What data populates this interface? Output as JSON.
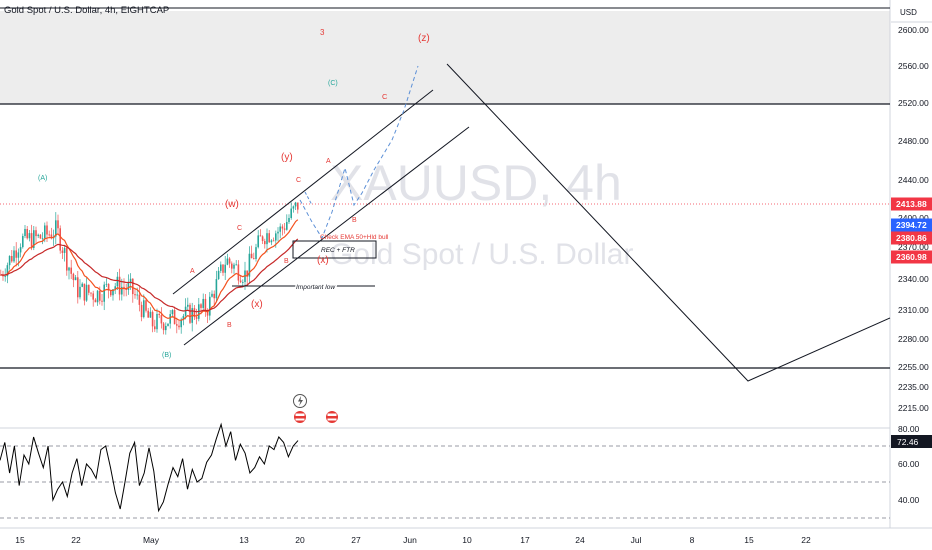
{
  "header": {
    "symbol_title": "Gold Spot / U.S. Dollar, 4h, EIGHTCAP",
    "currency": "USD"
  },
  "watermark": {
    "ticker": "XAUUSD, 4h",
    "name": "Gold Spot / U.S. Dollar"
  },
  "colors": {
    "up": "#26a69a",
    "down": "#ef5350",
    "wave_red": "#e53935",
    "wave_teal": "#26a69a",
    "projection": "#5b8fd6",
    "ema_fast": "#f4511e",
    "ema_slow": "#c62828",
    "rsi": "#000000",
    "price_tag_red": "#f23645",
    "price_tag_blue": "#2962ff",
    "rsi_tag": "#131722"
  },
  "chart_data": {
    "type": "line",
    "title": "Gold Spot / U.S. Dollar, 4h, EIGHTCAP",
    "y_axis_ticks": [
      "2600.00",
      "2560.00",
      "2520.00",
      "2480.00",
      "2440.00",
      "2400.00",
      "2370.00",
      "2340.00",
      "2310.00",
      "2280.00",
      "2255.00",
      "2235.00",
      "2215.00"
    ],
    "x_axis_ticks": [
      "15",
      "22",
      "May",
      "13",
      "20",
      "27",
      "Jun",
      "10",
      "17",
      "24",
      "Jul",
      "8",
      "15",
      "22"
    ],
    "price_series": {
      "name": "XAUUSD close (approx.)",
      "x": [
        "Apr 12",
        "Apr 15",
        "Apr 17",
        "Apr 19",
        "Apr 22",
        "Apr 24",
        "Apr 26",
        "Apr 29",
        "May 1",
        "May 3",
        "May 6",
        "May 8",
        "May 10",
        "May 13",
        "May 15",
        "May 17",
        "May 20"
      ],
      "y": [
        2345,
        2380,
        2382,
        2390,
        2330,
        2325,
        2335,
        2330,
        2295,
        2300,
        2305,
        2312,
        2360,
        2345,
        2385,
        2390,
        2420
      ]
    },
    "price_labels": [
      {
        "value": "2413.88",
        "role": "last price",
        "color": "#f23645"
      },
      {
        "value": "2394.72",
        "role": "ema",
        "color": "#2962ff"
      },
      {
        "value": "2380.86",
        "role": "ema",
        "color": "#f23645"
      },
      {
        "value": "2360.98",
        "role": "ema",
        "color": "#f23645"
      }
    ],
    "horizontal_levels": [
      2523,
      2253,
      2617
    ],
    "wave_labels_red": [
      "3",
      "(z)",
      "C",
      "(y)",
      "A",
      "C",
      "B",
      "(w)",
      "C",
      "A",
      "B",
      "(x)",
      "B",
      "(x)"
    ],
    "wave_labels_teal": [
      "(A)",
      "(B)",
      "(C)"
    ],
    "annotations": {
      "check": "Check EMA 50+Hld bull",
      "rec": "REC + FTR",
      "important": "Important low"
    },
    "rsi": {
      "value_label": "72.46",
      "ticks": [
        "80.00",
        "60.00",
        "40.00"
      ],
      "levels": [
        70,
        50,
        30
      ],
      "values": [
        62,
        72,
        55,
        70,
        48,
        65,
        60,
        75,
        66,
        58,
        70,
        40,
        46,
        50,
        42,
        55,
        63,
        48,
        60,
        57,
        52,
        68,
        70,
        58,
        44,
        35,
        50,
        66,
        72,
        48,
        55,
        69,
        56,
        34,
        39,
        49,
        58,
        53,
        63,
        46,
        57,
        50,
        52,
        61,
        65,
        74,
        82,
        70,
        78,
        62,
        71,
        66,
        55,
        58,
        64,
        60,
        70,
        68,
        75,
        72,
        64,
        70,
        73
      ]
    }
  }
}
